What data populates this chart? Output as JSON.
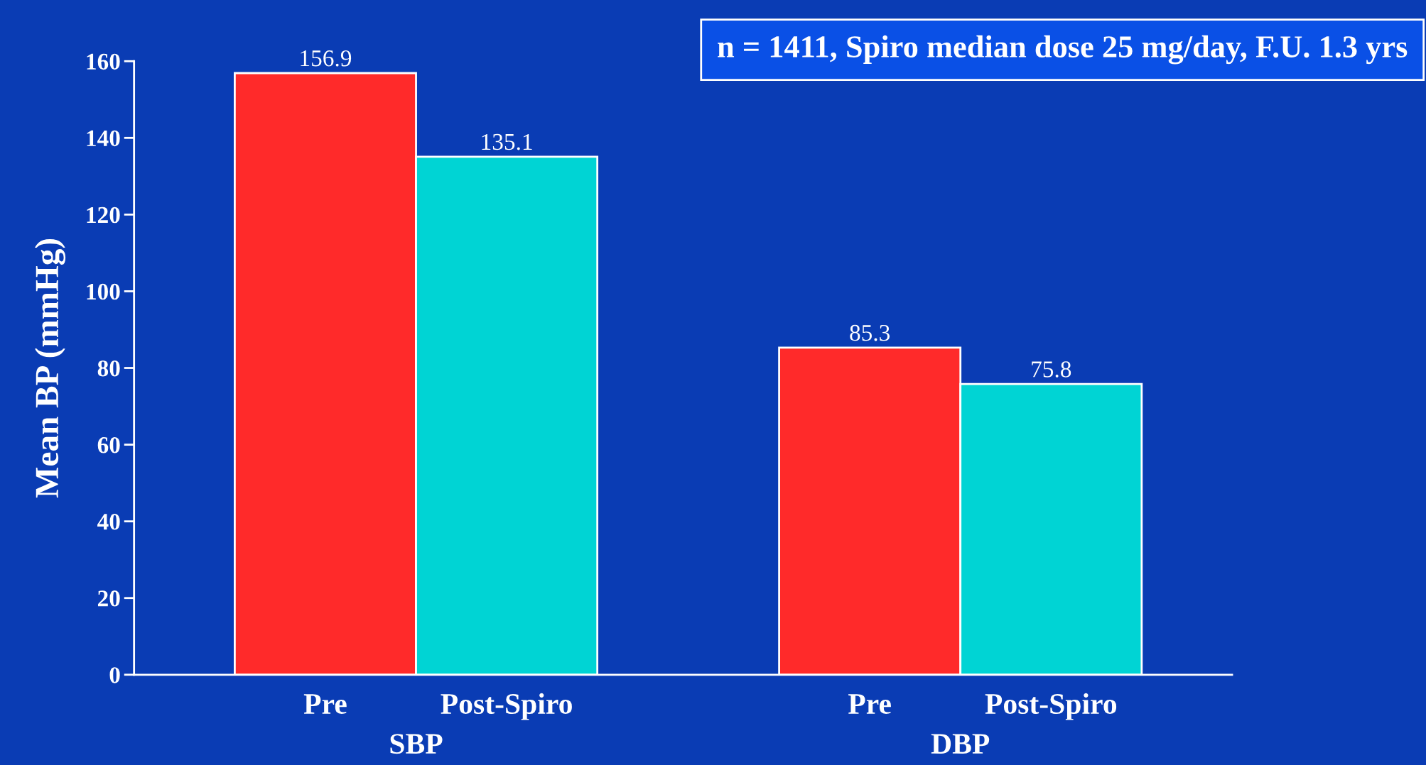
{
  "chart_data": {
    "type": "bar",
    "ylabel": "Mean BP (mmHg)",
    "categories": [
      "SBP",
      "DBP"
    ],
    "series": [
      {
        "name": "Pre",
        "color": "#ff2a2a",
        "values": [
          156.9,
          85.3
        ]
      },
      {
        "name": "Post-Spiro",
        "color": "#00d4d4",
        "values": [
          135.1,
          75.8
        ]
      }
    ],
    "ylim": [
      0,
      160
    ],
    "yticks": [
      0,
      20,
      40,
      60,
      80,
      100,
      120,
      140,
      160
    ],
    "grid": false,
    "legend": false,
    "data_labels": true,
    "annotations": [
      "n = 1411, Spiro median dose 25 mg/day, F.U. 1.3 yrs"
    ]
  }
}
